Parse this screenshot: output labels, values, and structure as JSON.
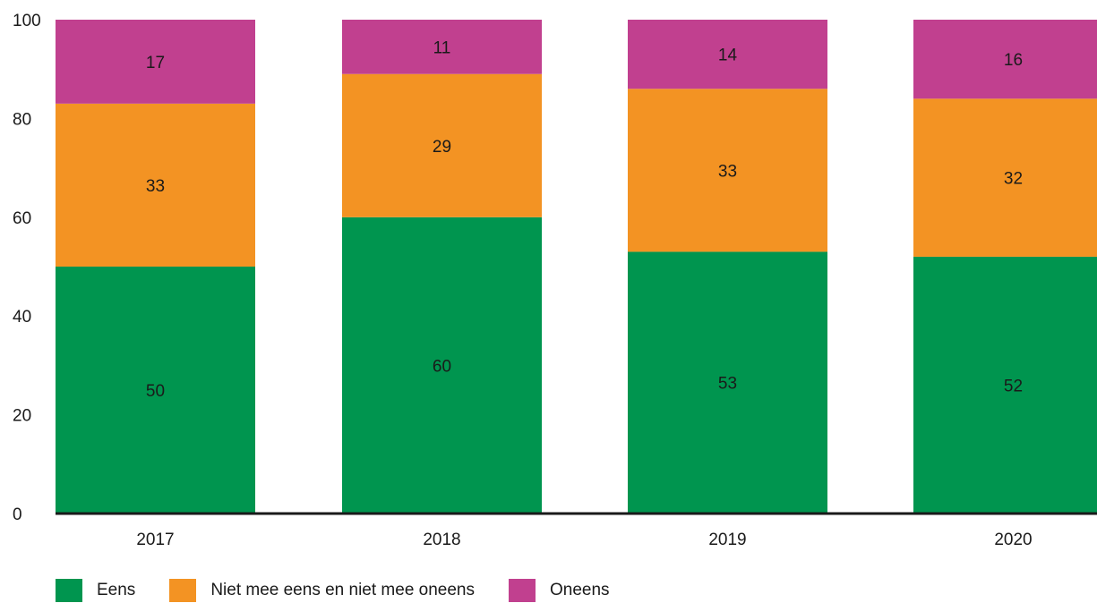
{
  "chart_data": {
    "type": "bar",
    "stacked": true,
    "categories": [
      "2017",
      "2018",
      "2019",
      "2020"
    ],
    "series": [
      {
        "name": "Eens",
        "values": [
          50,
          60,
          53,
          52
        ],
        "color": "#00954f"
      },
      {
        "name": "Niet mee eens en niet mee oneens",
        "values": [
          33,
          29,
          33,
          32
        ],
        "color": "#f39323"
      },
      {
        "name": "Oneens",
        "values": [
          17,
          11,
          14,
          16
        ],
        "color": "#c1408f"
      }
    ],
    "totals": [
      100,
      100,
      100,
      100
    ],
    "yticks": [
      "0",
      "20",
      "40",
      "60",
      "80",
      "100"
    ],
    "ylim": [
      0,
      100
    ],
    "title": "",
    "xlabel": "",
    "ylabel": "",
    "grid": false,
    "legend_position": "bottom-left",
    "axis_color": "#1a1a1a"
  }
}
